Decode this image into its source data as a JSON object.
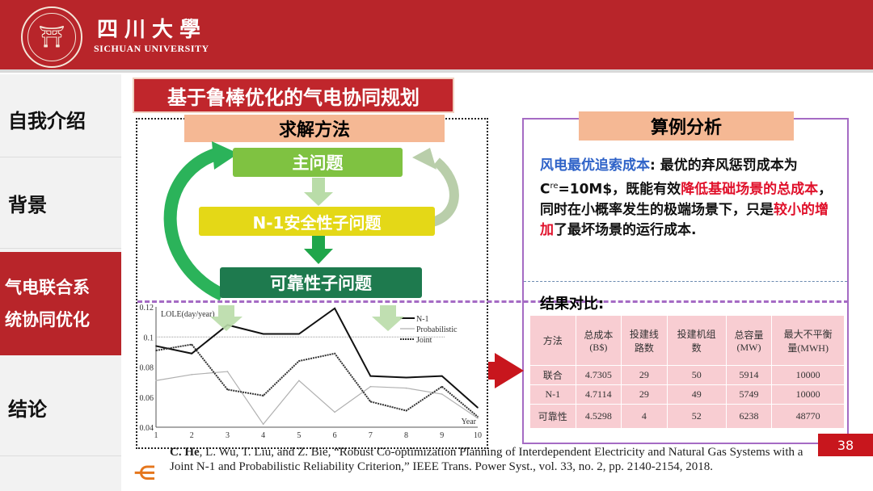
{
  "header": {
    "university_cn": "四川大學",
    "university_en": "SICHUAN UNIVERSITY"
  },
  "sidebar": {
    "items": [
      {
        "label": "自我介绍"
      },
      {
        "label": "背景"
      },
      {
        "label": "气电联合系统协同优化",
        "line1": "气电联合系",
        "line2": "统协同优化",
        "active": true
      },
      {
        "label": "结论"
      }
    ]
  },
  "slide": {
    "title": "基于鲁棒优化的气电协同规划",
    "left": {
      "section": "求解方法",
      "steps": [
        "主问题",
        "N-1安全性子问题",
        "可靠性子问题"
      ]
    },
    "right": {
      "section": "算例分析",
      "desc": {
        "p1": "风电最优追索成本",
        "p2": ": 最优的弃风惩罚成本为 C",
        "sup": "re",
        "p3": "=10M$，既能有效",
        "p4": "降低基础场景的总成本",
        "p5": "，同时在小概率发生的极端场景下，只是",
        "p6": "较小的增加",
        "p7": "了最坏场景的运行成本."
      },
      "results_label": "结果对比:",
      "table": {
        "headers": [
          "方法",
          "总成本\n(B$)",
          "投建线\n路数",
          "投建机组\n数",
          "总容量\n(MW)",
          "最大不平衡\n量(MWH)"
        ],
        "rows": [
          [
            "联合",
            "4.7305",
            "29",
            "50",
            "5914",
            "10000"
          ],
          [
            "N-1",
            "4.7114",
            "29",
            "49",
            "5749",
            "10000"
          ],
          [
            "可靠性",
            "4.5298",
            "4",
            "52",
            "6238",
            "48770"
          ]
        ]
      }
    },
    "reference": {
      "author": "C. He",
      "rest": ", L. Wu, T. Liu, and Z. Bie, “Robust Co-optimization Planning of Interdependent Electricity and Natural Gas Systems with a Joint N-1 and Probabilistic Reliability Criterion,” IEEE Trans. Power Syst., vol. 33, no. 2, pp. 2140-2154, 2018."
    },
    "page_number": "38"
  },
  "chart_data": {
    "type": "line",
    "title": "",
    "ylabel": "LOLE(day/year)",
    "xlabel": "Year",
    "x": [
      1,
      2,
      3,
      4,
      5,
      6,
      7,
      8,
      9,
      10
    ],
    "xticks": [
      "1",
      "2",
      "3",
      "4",
      "5",
      "6",
      "7",
      "8",
      "9",
      "10"
    ],
    "yticks": [
      "0.04",
      "0.06",
      "0.08",
      "0.1",
      "0.12"
    ],
    "ylim": [
      0.04,
      0.12
    ],
    "xlim": [
      1,
      10
    ],
    "legend": "top-right",
    "reference_line": 0.1,
    "series": [
      {
        "name": "N-1",
        "values": [
          0.094,
          0.089,
          0.108,
          0.102,
          0.102,
          0.119,
          0.074,
          0.073,
          0.074,
          0.053
        ],
        "color": "#111111"
      },
      {
        "name": "Probabilistic",
        "values": [
          0.071,
          0.075,
          0.077,
          0.042,
          0.071,
          0.05,
          0.067,
          0.066,
          0.062,
          0.046
        ],
        "color": "#b0b0b0"
      },
      {
        "name": "Joint",
        "values": [
          0.091,
          0.095,
          0.065,
          0.061,
          0.084,
          0.089,
          0.057,
          0.051,
          0.067,
          0.047
        ],
        "color": "#333333"
      }
    ]
  },
  "colors": {
    "brand": "#b8252a",
    "section_bg": "#f5b894",
    "step1": "#7fc241",
    "step2": "#e4d817",
    "step3": "#1e7a4e"
  }
}
